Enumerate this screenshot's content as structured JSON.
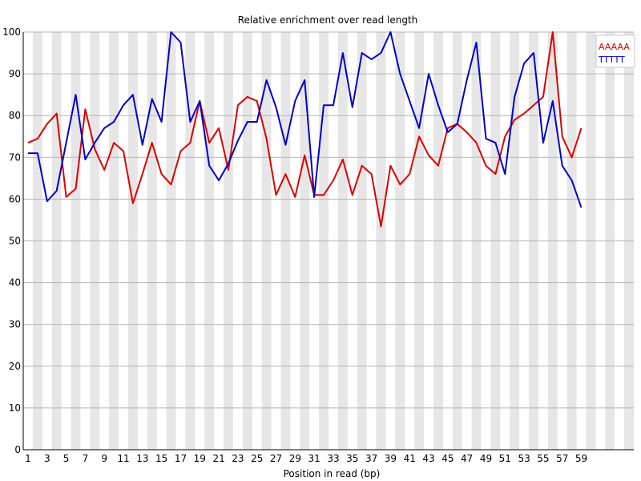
{
  "chart_data": {
    "type": "line",
    "title": "Relative enrichment over read length",
    "xlabel": "Position in read (bp)",
    "ylabel": "",
    "ylim": [
      0,
      100
    ],
    "yticks": [
      0,
      10,
      20,
      30,
      40,
      50,
      60,
      70,
      80,
      90,
      100
    ],
    "x": [
      1,
      2,
      3,
      4,
      5,
      6,
      7,
      8,
      9,
      10,
      11,
      12,
      13,
      14,
      15,
      16,
      17,
      18,
      19,
      20,
      21,
      22,
      23,
      24,
      25,
      26,
      27,
      28,
      29,
      30,
      31,
      32,
      33,
      34,
      35,
      36,
      37,
      38,
      39,
      40,
      41,
      42,
      43,
      44,
      45,
      46,
      47,
      48,
      49,
      50,
      51,
      52,
      53,
      54,
      55,
      56,
      57,
      58,
      59
    ],
    "xtick_labels": [
      "1",
      "3",
      "5",
      "7",
      "9",
      "11",
      "13",
      "15",
      "17",
      "19",
      "21",
      "23",
      "25",
      "27",
      "29",
      "31",
      "33",
      "35",
      "37",
      "39",
      "41",
      "43",
      "45",
      "47",
      "49",
      "51",
      "53",
      "55",
      "57",
      "59"
    ],
    "grid": true,
    "legend_position": "top-right",
    "series": [
      {
        "name": "AAAAA",
        "color": "#dd0000",
        "values": [
          73.5,
          74.5,
          78,
          80.5,
          60.5,
          62.5,
          81.5,
          72,
          67,
          73.5,
          71.5,
          59,
          66,
          73.5,
          66,
          63.5,
          71.5,
          73.5,
          83.5,
          73.5,
          77,
          67,
          82.5,
          84.5,
          83.5,
          74.5,
          61,
          66,
          60.5,
          70.5,
          61,
          61,
          64.5,
          69.5,
          61,
          68,
          66,
          53.5,
          68,
          63.5,
          66,
          75,
          70.5,
          68,
          77,
          78,
          76,
          73.5,
          68,
          66,
          75,
          79,
          80.5,
          82.5,
          84.5,
          100,
          75,
          70,
          77
        ]
      },
      {
        "name": "TTTTT",
        "color": "#0000cc",
        "values": [
          71,
          71,
          59.5,
          62,
          73.5,
          85,
          69.5,
          73.5,
          77,
          78.5,
          82.5,
          85,
          73,
          84,
          78.5,
          100,
          97.5,
          78.5,
          83.5,
          68,
          64.5,
          68.5,
          74,
          78.5,
          78.5,
          88.5,
          82,
          73,
          83.5,
          88.5,
          60.5,
          82.5,
          82.5,
          95,
          82,
          95,
          93.5,
          95,
          100,
          90,
          83.5,
          77,
          90,
          82.5,
          76,
          78,
          88.5,
          97.5,
          74.5,
          73.5,
          66,
          84.5,
          92.5,
          95,
          73.5,
          83.5,
          68,
          64.5,
          58
        ]
      }
    ]
  }
}
